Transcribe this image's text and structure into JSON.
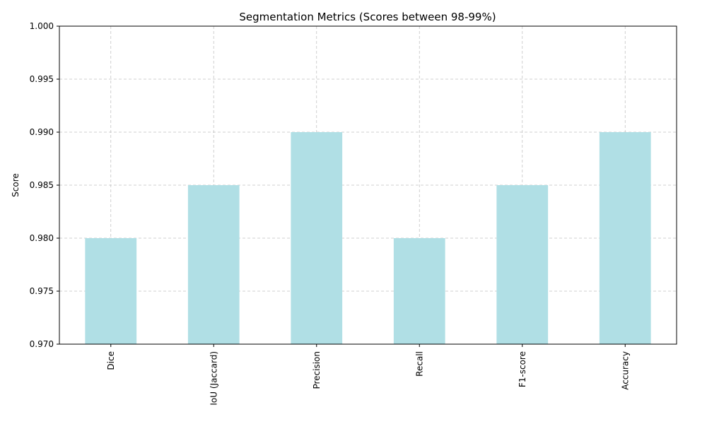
{
  "chart_data": {
    "type": "bar",
    "title": "Segmentation Metrics (Scores between 98-99%)",
    "xlabel": "",
    "ylabel": "Score",
    "categories": [
      "Dice",
      "IoU (Jaccard)",
      "Precision",
      "Recall",
      "F1-score",
      "Accuracy"
    ],
    "values": [
      0.98,
      0.985,
      0.99,
      0.98,
      0.985,
      0.99
    ],
    "ylim": [
      0.97,
      1.0
    ],
    "yticks": [
      0.97,
      0.975,
      0.98,
      0.985,
      0.99,
      0.995,
      1.0
    ],
    "ytick_labels": [
      "0.970",
      "0.975",
      "0.980",
      "0.985",
      "0.990",
      "0.995",
      "1.000"
    ],
    "bar_color": "#b0dfe5",
    "grid": true,
    "legend": "none"
  }
}
